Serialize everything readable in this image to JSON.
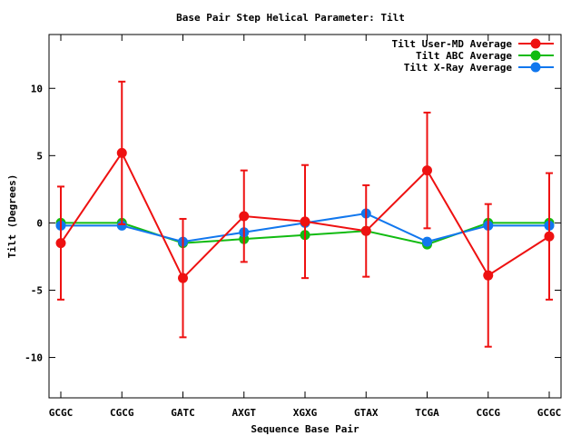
{
  "chart_data": {
    "type": "line",
    "title": "Base Pair Step Helical Parameter: Tilt",
    "xlabel": "Sequence Base Pair",
    "ylabel": "Tilt (Degrees)",
    "categories": [
      "GCGC",
      "CGCG",
      "GATC",
      "AXGT",
      "XGXG",
      "GTAX",
      "TCGA",
      "CGCG",
      "GCGC"
    ],
    "ylim": [
      -13,
      14
    ],
    "yticks": [
      -10,
      -5,
      0,
      5,
      10
    ],
    "legend_position": "top-right",
    "grid": false,
    "series": [
      {
        "name": "Tilt User-MD Average",
        "color": "#ee1111",
        "values": [
          -1.5,
          5.2,
          -4.1,
          0.5,
          0.1,
          -0.6,
          3.9,
          -3.9,
          -1.0
        ],
        "errors": [
          4.2,
          5.3,
          4.4,
          3.4,
          4.2,
          3.4,
          4.3,
          5.3,
          4.7
        ]
      },
      {
        "name": "Tilt ABC Average",
        "color": "#11bb11",
        "values": [
          0.0,
          0.0,
          -1.5,
          -1.2,
          -0.9,
          -0.6,
          -1.6,
          0.0,
          0.0
        ]
      },
      {
        "name": "Tilt X-Ray Average",
        "color": "#1177ee",
        "values": [
          -0.2,
          -0.2,
          -1.4,
          -0.7,
          0.0,
          0.7,
          -1.4,
          -0.2,
          -0.2
        ]
      }
    ]
  }
}
